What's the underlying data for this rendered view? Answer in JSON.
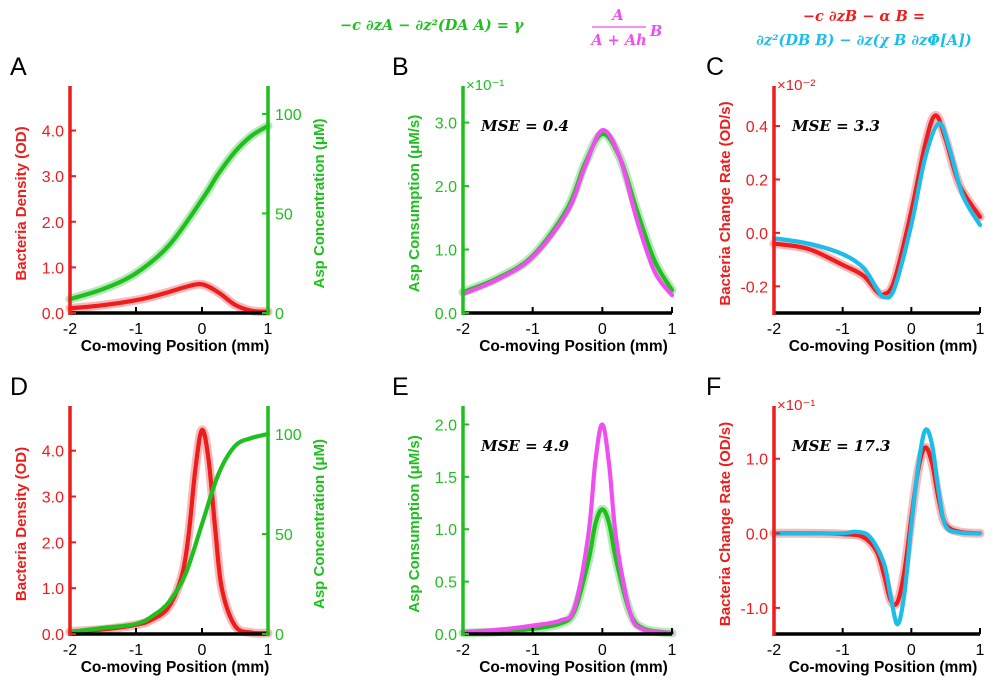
{
  "colors": {
    "red": "#ee1c1c",
    "green": "#1fbf1f",
    "magenta": "#f04ef0",
    "cyan": "#1cbde8",
    "band_red": "#f4a3a3",
    "band_green": "#9fe09f",
    "black": "#000000"
  },
  "equations": {
    "asp_lhs": "−c ∂zA − ∂z²(DA A) = γ",
    "asp_frac_num": "A",
    "asp_frac_den": "A + Ah",
    "asp_tail": "B",
    "bact_line1": "−c ∂zB − α B =",
    "bact_line2": "∂z²(DB B) − ∂z(χ B ∂zΦ[A])"
  },
  "chart_data": [
    {
      "panel": "A",
      "type": "line",
      "xlabel": "Co-moving Position (mm)",
      "x_ticks": [
        "-2",
        "-1",
        "0",
        "1"
      ],
      "xlim": [
        -2,
        1
      ],
      "ylabel_left": "Bacteria Density (OD)",
      "ylim_left": [
        0,
        4.8
      ],
      "yticks_left": [
        "0.0",
        "1.0",
        "2.0",
        "3.0",
        "4.0"
      ],
      "ylabel_right": "Asp Concentration (μM)",
      "ylim_right": [
        0,
        110
      ],
      "yticks_right": [
        "0",
        "50",
        "100"
      ],
      "series": [
        {
          "axis": "left",
          "color": "red",
          "band": true,
          "x": [
            -2,
            -1.5,
            -1,
            -0.75,
            -0.5,
            -0.25,
            0,
            0.25,
            0.5,
            0.75,
            1
          ],
          "y": [
            0.1,
            0.17,
            0.28,
            0.36,
            0.46,
            0.57,
            0.63,
            0.45,
            0.18,
            0.05,
            0.03
          ]
        },
        {
          "axis": "right",
          "color": "green",
          "band": true,
          "x": [
            -2,
            -1.5,
            -1,
            -0.5,
            0,
            0.25,
            0.5,
            0.75,
            1
          ],
          "y": [
            7,
            12,
            20,
            34,
            57,
            70,
            81,
            89,
            94
          ]
        }
      ]
    },
    {
      "panel": "B",
      "type": "line",
      "xlabel": "Co-moving Position (mm)",
      "x_ticks": [
        "-2",
        "-1",
        "0",
        "1"
      ],
      "xlim": [
        -2,
        1
      ],
      "ylabel_left": "Asp Consumption (μM/s)",
      "ylim_left": [
        0,
        3.45
      ],
      "yticks_left": [
        "0.0",
        "1.0",
        "2.0",
        "3.0"
      ],
      "multiplier": "×10⁻¹",
      "mse": "MSE = 0.4",
      "series": [
        {
          "color": "green",
          "band": true,
          "x": [
            -2,
            -1.5,
            -1,
            -0.5,
            -0.25,
            0,
            0.25,
            0.5,
            0.75,
            1
          ],
          "y": [
            0.33,
            0.55,
            0.9,
            1.65,
            2.35,
            2.82,
            2.45,
            1.6,
            0.82,
            0.36
          ]
        },
        {
          "color": "magenta",
          "band": false,
          "x": [
            -2,
            -1.5,
            -1,
            -0.5,
            -0.25,
            0,
            0.25,
            0.5,
            0.75,
            1
          ],
          "y": [
            0.3,
            0.53,
            0.88,
            1.6,
            2.3,
            2.88,
            2.45,
            1.45,
            0.65,
            0.28
          ]
        }
      ]
    },
    {
      "panel": "C",
      "type": "line",
      "xlabel": "Co-moving Position (mm)",
      "x_ticks": [
        "-2",
        "-1",
        "0",
        "1"
      ],
      "xlim": [
        -2,
        1
      ],
      "ylabel_left": "Bacteria Change Rate (OD/s)",
      "ylim_left": [
        -0.3,
        0.52
      ],
      "yticks_left": [
        "-0.2",
        "0.0",
        "0.2",
        "0.4"
      ],
      "multiplier": "×10⁻²",
      "mse": "MSE = 3.3",
      "series": [
        {
          "color": "red",
          "band": true,
          "x": [
            -2,
            -1.5,
            -1,
            -0.7,
            -0.5,
            -0.4,
            -0.25,
            0,
            0.2,
            0.35,
            0.5,
            0.7,
            1
          ],
          "y": [
            -0.04,
            -0.06,
            -0.12,
            -0.16,
            -0.22,
            -0.23,
            -0.18,
            0.08,
            0.33,
            0.44,
            0.35,
            0.18,
            0.06
          ]
        },
        {
          "color": "cyan",
          "band": false,
          "x": [
            -2,
            -1.5,
            -1,
            -0.7,
            -0.5,
            -0.4,
            -0.25,
            0,
            0.2,
            0.4,
            0.55,
            0.75,
            1
          ],
          "y": [
            -0.02,
            -0.04,
            -0.08,
            -0.13,
            -0.21,
            -0.24,
            -0.21,
            0.03,
            0.28,
            0.41,
            0.32,
            0.14,
            0.03
          ]
        }
      ]
    },
    {
      "panel": "D",
      "type": "line",
      "xlabel": "Co-moving Position (mm)",
      "x_ticks": [
        "-2",
        "-1",
        "0",
        "1"
      ],
      "xlim": [
        -2,
        1
      ],
      "ylabel_left": "Bacteria Density (OD)",
      "ylim_left": [
        0,
        4.8
      ],
      "yticks_left": [
        "0.0",
        "1.0",
        "2.0",
        "3.0",
        "4.0"
      ],
      "ylabel_right": "Asp Concentration (μM)",
      "ylim_right": [
        0,
        110
      ],
      "yticks_right": [
        "0",
        "50",
        "100"
      ],
      "series": [
        {
          "axis": "left",
          "color": "red",
          "band": true,
          "x": [
            -2,
            -1.5,
            -1,
            -0.75,
            -0.5,
            -0.3,
            -0.2,
            -0.1,
            0,
            0.1,
            0.2,
            0.3,
            0.5,
            0.75,
            1
          ],
          "y": [
            0.05,
            0.1,
            0.2,
            0.32,
            0.6,
            1.3,
            2.2,
            3.6,
            4.45,
            3.8,
            2.3,
            1.0,
            0.18,
            0.03,
            0.02
          ]
        },
        {
          "axis": "right",
          "color": "green",
          "band": false,
          "x": [
            -2,
            -1.5,
            -1,
            -0.75,
            -0.5,
            -0.25,
            0,
            0.25,
            0.5,
            0.75,
            1
          ],
          "y": [
            1,
            3,
            5,
            9,
            16,
            30,
            55,
            80,
            94,
            98,
            100
          ]
        }
      ]
    },
    {
      "panel": "E",
      "type": "line",
      "xlabel": "Co-moving Position (mm)",
      "x_ticks": [
        "-2",
        "-1",
        "0",
        "1"
      ],
      "xlim": [
        -2,
        1
      ],
      "ylabel_left": "Asp Consumption (μM/s)",
      "ylim_left": [
        0,
        2.1
      ],
      "yticks_left": [
        "0.0",
        "0.5",
        "1.0",
        "1.5",
        "2.0"
      ],
      "mse": "MSE = 4.9",
      "series": [
        {
          "color": "green",
          "band": true,
          "x": [
            -2,
            -1.5,
            -1,
            -0.6,
            -0.4,
            -0.2,
            -0.1,
            0,
            0.1,
            0.2,
            0.4,
            0.6,
            1
          ],
          "y": [
            0.01,
            0.02,
            0.05,
            0.1,
            0.22,
            0.7,
            1.05,
            1.19,
            1.05,
            0.7,
            0.2,
            0.05,
            0.01
          ]
        },
        {
          "color": "magenta",
          "band": false,
          "x": [
            -2,
            -1.5,
            -1,
            -0.6,
            -0.4,
            -0.2,
            -0.1,
            0,
            0.1,
            0.2,
            0.4,
            0.6,
            1
          ],
          "y": [
            0.02,
            0.04,
            0.08,
            0.13,
            0.25,
            0.95,
            1.65,
            2.0,
            1.6,
            0.9,
            0.2,
            0.04,
            0.01
          ]
        }
      ]
    },
    {
      "panel": "F",
      "type": "line",
      "xlabel": "Co-moving Position (mm)",
      "x_ticks": [
        "-2",
        "-1",
        "0",
        "1"
      ],
      "xlim": [
        -2,
        1
      ],
      "ylabel_left": "Bacteria Change Rate (OD/s)",
      "ylim_left": [
        -1.35,
        1.6
      ],
      "yticks_left": [
        "-1.0",
        "0.0",
        "1.0"
      ],
      "multiplier": "×10⁻¹",
      "mse": "MSE = 17.3",
      "series": [
        {
          "color": "red",
          "band": true,
          "x": [
            -2,
            -1.5,
            -1,
            -0.7,
            -0.5,
            -0.4,
            -0.3,
            -0.2,
            -0.1,
            0,
            0.1,
            0.2,
            0.3,
            0.4,
            0.5,
            0.7,
            1
          ],
          "y": [
            0.0,
            0.0,
            -0.01,
            -0.05,
            -0.25,
            -0.55,
            -0.9,
            -0.92,
            -0.5,
            0.2,
            0.85,
            1.15,
            0.95,
            0.45,
            0.12,
            0.02,
            0.0
          ]
        },
        {
          "color": "cyan",
          "band": false,
          "x": [
            -2,
            -1.5,
            -1,
            -0.8,
            -0.6,
            -0.4,
            -0.3,
            -0.2,
            -0.1,
            0,
            0.1,
            0.2,
            0.3,
            0.4,
            0.5,
            0.7,
            1
          ],
          "y": [
            0.0,
            0.0,
            0.0,
            0.02,
            -0.05,
            -0.4,
            -0.85,
            -1.22,
            -0.8,
            0.1,
            0.9,
            1.38,
            1.2,
            0.55,
            0.1,
            0.01,
            0.0
          ]
        }
      ]
    }
  ]
}
